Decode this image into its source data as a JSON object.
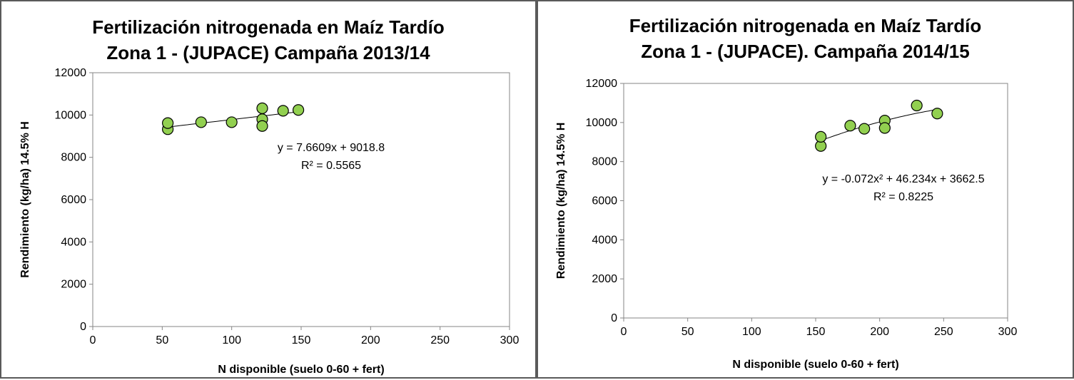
{
  "chart_data": [
    {
      "type": "scatter",
      "title": "Fertilización nitrogenada en Maíz Tardío",
      "subtitle": "Zona 1 - (JUPACE) Campaña 2013/14",
      "xlabel": "N disponible  (suelo 0-60 + fert)",
      "ylabel": "Rendimiento (kg/ha) 14.5% H",
      "xlim": [
        0,
        300
      ],
      "ylim": [
        0,
        12000
      ],
      "xticks": [
        "0",
        "50",
        "100",
        "150",
        "200",
        "250",
        "300"
      ],
      "yticks": [
        "0",
        "2000",
        "4000",
        "6000",
        "8000",
        "10000",
        "12000"
      ],
      "grid": false,
      "legend": "none",
      "point_color": "#92d050",
      "points": [
        {
          "x": 54,
          "y": 9330
        },
        {
          "x": 54,
          "y": 9620
        },
        {
          "x": 78,
          "y": 9660
        },
        {
          "x": 100,
          "y": 9660
        },
        {
          "x": 122,
          "y": 10320
        },
        {
          "x": 122,
          "y": 9800
        },
        {
          "x": 122,
          "y": 9480
        },
        {
          "x": 137,
          "y": 10200
        },
        {
          "x": 148,
          "y": 10240
        }
      ],
      "trendline": {
        "kind": "linear",
        "coef": [
          9018.8,
          7.6609
        ],
        "x_range": [
          54,
          148
        ]
      },
      "equation": "y = 7.6609x + 9018.8",
      "r2": "R² = 0.5565"
    },
    {
      "type": "scatter",
      "title": "Fertilización nitrogenada en Maíz Tardío",
      "subtitle": "Zona 1 - (JUPACE). Campaña 2014/15",
      "xlabel": "N disponible  (suelo 0-60 + fert)",
      "ylabel": "Rendimiento (kg/ha) 14.5% H",
      "xlim": [
        0,
        300
      ],
      "ylim": [
        0,
        12000
      ],
      "xticks": [
        "0",
        "50",
        "100",
        "150",
        "200",
        "250",
        "300"
      ],
      "yticks": [
        "0",
        "2000",
        "4000",
        "6000",
        "8000",
        "10000",
        "12000"
      ],
      "grid": false,
      "legend": "none",
      "point_color": "#92d050",
      "points": [
        {
          "x": 154,
          "y": 8800
        },
        {
          "x": 154,
          "y": 9270
        },
        {
          "x": 177,
          "y": 9840
        },
        {
          "x": 188,
          "y": 9680
        },
        {
          "x": 204,
          "y": 10100
        },
        {
          "x": 204,
          "y": 9720
        },
        {
          "x": 229,
          "y": 10870
        },
        {
          "x": 245,
          "y": 10460
        }
      ],
      "trendline": {
        "kind": "quadratic",
        "coef": [
          3662.5,
          46.234,
          -0.072
        ],
        "x_range": [
          154,
          245
        ]
      },
      "equation": "y = -0.072x² + 46.234x + 3662.5",
      "r2": "R² = 0.8225"
    }
  ]
}
